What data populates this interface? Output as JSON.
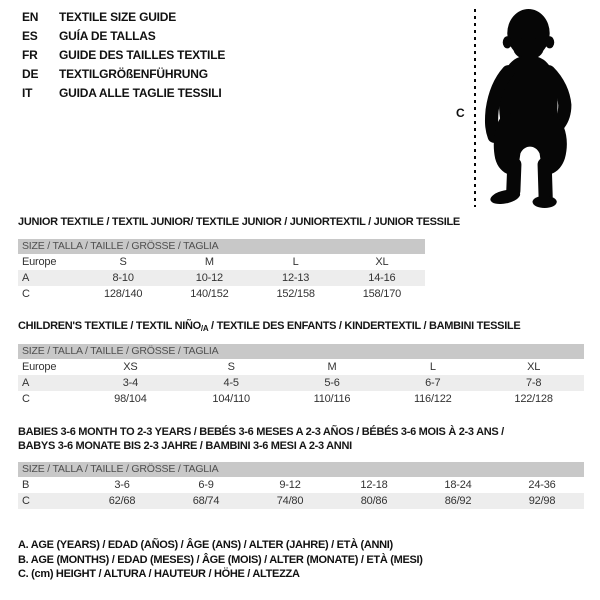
{
  "colors": {
    "header_bar": "#c8c8c8",
    "row_shade": "#ededed",
    "text": "#111111",
    "bar_text": "#4f4f4f"
  },
  "header": {
    "languages": [
      {
        "code": "EN",
        "title": "TEXTILE SIZE GUIDE"
      },
      {
        "code": "ES",
        "title": "GUÍA DE TALLAS"
      },
      {
        "code": "FR",
        "title": "GUIDE DES TAILLES TEXTILE"
      },
      {
        "code": "DE",
        "title": "TEXTILGRÖßENFÜHRUNG"
      },
      {
        "code": "IT",
        "title": "GUIDA ALLE TAGLIE TESSILI"
      }
    ]
  },
  "figure": {
    "label": "C",
    "image": "baby-silhouette"
  },
  "tables": [
    {
      "title_lines": [
        [
          {
            "text": "JUNIOR TEXTILE / TEXTIL JUNIOR/ TEXTILE JUNIOR / JUNIORTEXTIL / JUNIOR TESSILE"
          }
        ]
      ],
      "size_header": "SIZE / TALLA / TAILLE / GRÖSSE / TAGLIA",
      "rows": [
        {
          "cells": [
            "Europe",
            "S",
            "M",
            "L",
            "XL"
          ],
          "shaded": false
        },
        {
          "cells": [
            "A",
            "8-10",
            "10-12",
            "12-13",
            "14-16"
          ],
          "shaded": true
        },
        {
          "cells": [
            "C",
            "128/140",
            "140/152",
            "152/158",
            "158/170"
          ],
          "shaded": false
        }
      ]
    },
    {
      "title_lines": [
        [
          {
            "text": "CHILDREN'S TEXTILE / TEXTIL NIÑO"
          },
          {
            "text": "/A",
            "sub": true
          },
          {
            "text": " / TEXTILE DES ENFANTS / KINDERTEXTIL / BAMBINI TESSILE"
          }
        ]
      ],
      "size_header": "SIZE / TALLA / TAILLE / GRÖSSE / TAGLIA",
      "rows": [
        {
          "cells": [
            "Europe",
            "XS",
            "S",
            "M",
            "L",
            "XL"
          ],
          "shaded": false
        },
        {
          "cells": [
            "A",
            "3-4",
            "4-5",
            "5-6",
            "6-7",
            "7-8"
          ],
          "shaded": true
        },
        {
          "cells": [
            "C",
            "98/104",
            "104/110",
            "110/116",
            "116/122",
            "122/128"
          ],
          "shaded": false
        }
      ]
    },
    {
      "title_lines": [
        [
          {
            "text": "BABIES 3-6 MONTH TO 2-3 YEARS / BEBÉS 3-6 MESES A 2-3 AÑOS / BÉBÉS 3-6 MOIS À 2-3 ANS /"
          }
        ],
        [
          {
            "text": "BABYS 3-6 MONATE BIS 2-3 JAHRE / BAMBINI 3-6 MESI A 2-3 ANNI"
          }
        ]
      ],
      "size_header": "SIZE / TALLA / TAILLE / GRÖSSE / TAGLIA",
      "rows": [
        {
          "cells": [
            "B",
            "3-6",
            "6-9",
            "9-12",
            "12-18",
            "18-24",
            "24-36"
          ],
          "shaded": false
        },
        {
          "cells": [
            "C",
            "62/68",
            "68/74",
            "74/80",
            "80/86",
            "86/92",
            "92/98"
          ],
          "shaded": true
        }
      ]
    }
  ],
  "footnotes": [
    "A. AGE (YEARS) / EDAD (AÑOS) / ÂGE (ANS) / ALTER (JAHRE) / ETÀ (ANNI)",
    "B. AGE (MONTHS) / EDAD (MESES) / ÂGE (MOIS) / ALTER (MONATE) / ETÀ (MESI)",
    "C. (cm) HEIGHT / ALTURA / HAUTEUR / HÖHE / ALTEZZA"
  ]
}
